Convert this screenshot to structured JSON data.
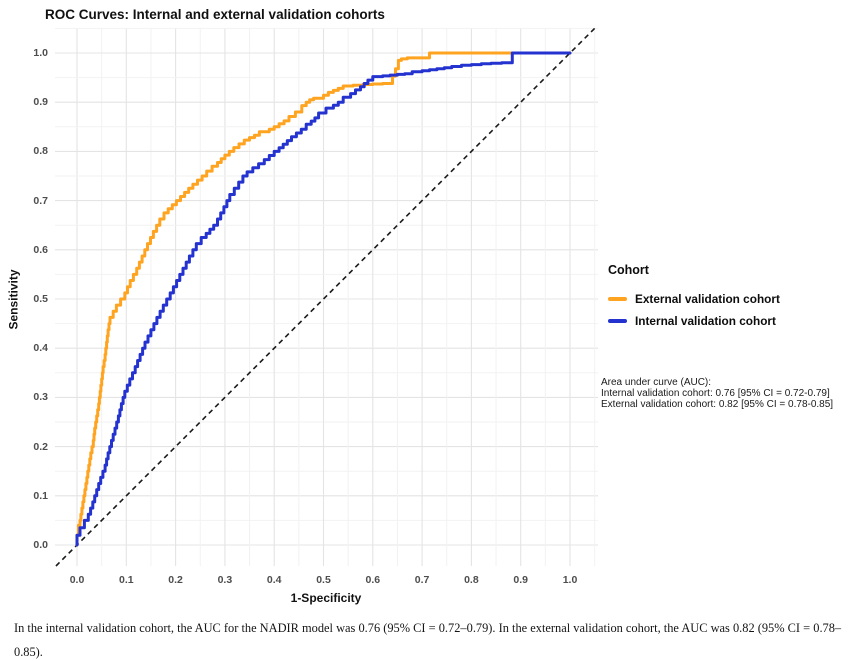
{
  "title": "ROC Curves: Internal and external validation cohorts",
  "axes": {
    "x_label": "1-Specificity",
    "y_label": "Sensitivity",
    "x_ticks": [
      "0.0",
      "0.1",
      "0.2",
      "0.3",
      "0.4",
      "0.5",
      "0.6",
      "0.7",
      "0.8",
      "0.9",
      "1.0"
    ],
    "y_ticks": [
      "0.0",
      "0.1",
      "0.2",
      "0.3",
      "0.4",
      "0.5",
      "0.6",
      "0.7",
      "0.8",
      "0.9",
      "1.0"
    ]
  },
  "legend": {
    "title": "Cohort",
    "items": [
      {
        "label": "External validation cohort",
        "color": "#FFA420"
      },
      {
        "label": "Internal validation cohort",
        "color": "#2433D0"
      }
    ]
  },
  "annotation": {
    "line1": "Area under curve (AUC):",
    "line2": "Internal validation cohort: 0.76 [95% CI = 0.72-0.79]",
    "line3": "External validation cohort: 0.82 [95% CI = 0.78-0.85]"
  },
  "caption": "In the internal validation cohort, the AUC for the NADIR model was 0.76 (95% CI = 0.72–0.79). In the external validation cohort, the AUC was 0.82 (95% CI = 0.78–0.85).",
  "chart_data": {
    "type": "line",
    "subtype": "roc-step-curves",
    "title": "ROC Curves: Internal and external validation cohorts",
    "xlabel": "1-Specificity",
    "ylabel": "Sensitivity",
    "xlim": [
      0,
      1
    ],
    "ylim": [
      0,
      1
    ],
    "grid": true,
    "legend_position": "right-outside",
    "colors": {
      "grid_major": "#e4e4e4",
      "grid_minor": "#f2f2f2",
      "reference": "#1a1a1a"
    },
    "reference_line": {
      "style": "dashed",
      "from": [
        0,
        0
      ],
      "to": [
        1,
        1
      ],
      "meaning": "chance diagonal"
    },
    "series": [
      {
        "name": "External validation cohort",
        "color": "#FFA420",
        "auc": 0.82,
        "auc_ci": "0.78-0.85",
        "points": [
          [
            0.0,
            0.0
          ],
          [
            0.003,
            0.02
          ],
          [
            0.006,
            0.04
          ],
          [
            0.008,
            0.05
          ],
          [
            0.012,
            0.075
          ],
          [
            0.016,
            0.1
          ],
          [
            0.02,
            0.125
          ],
          [
            0.024,
            0.15
          ],
          [
            0.028,
            0.175
          ],
          [
            0.033,
            0.2
          ],
          [
            0.036,
            0.225
          ],
          [
            0.04,
            0.25
          ],
          [
            0.044,
            0.275
          ],
          [
            0.047,
            0.3
          ],
          [
            0.05,
            0.325
          ],
          [
            0.053,
            0.35
          ],
          [
            0.057,
            0.375
          ],
          [
            0.06,
            0.4
          ],
          [
            0.063,
            0.425
          ],
          [
            0.067,
            0.45
          ],
          [
            0.08,
            0.475
          ],
          [
            0.097,
            0.5
          ],
          [
            0.108,
            0.525
          ],
          [
            0.121,
            0.55
          ],
          [
            0.132,
            0.575
          ],
          [
            0.143,
            0.6
          ],
          [
            0.155,
            0.625
          ],
          [
            0.168,
            0.65
          ],
          [
            0.185,
            0.675
          ],
          [
            0.21,
            0.7
          ],
          [
            0.235,
            0.725
          ],
          [
            0.263,
            0.75
          ],
          [
            0.285,
            0.77
          ],
          [
            0.3,
            0.785
          ],
          [
            0.318,
            0.8
          ],
          [
            0.35,
            0.823
          ],
          [
            0.37,
            0.833
          ],
          [
            0.39,
            0.84
          ],
          [
            0.41,
            0.85
          ],
          [
            0.43,
            0.862
          ],
          [
            0.456,
            0.88
          ],
          [
            0.465,
            0.893
          ],
          [
            0.472,
            0.9
          ],
          [
            0.48,
            0.905
          ],
          [
            0.5,
            0.908
          ],
          [
            0.52,
            0.92
          ],
          [
            0.54,
            0.928
          ],
          [
            0.56,
            0.933
          ],
          [
            0.6,
            0.936
          ],
          [
            0.64,
            0.938
          ],
          [
            0.652,
            0.968
          ],
          [
            0.658,
            0.985
          ],
          [
            0.67,
            0.988
          ],
          [
            0.69,
            0.99
          ],
          [
            0.715,
            0.99
          ],
          [
            0.722,
            1.0
          ],
          [
            1.0,
            1.0
          ]
        ]
      },
      {
        "name": "Internal validation cohort",
        "color": "#2433D0",
        "auc": 0.76,
        "auc_ci": "0.72-0.79",
        "points": [
          [
            0.0,
            0.0
          ],
          [
            0.006,
            0.02
          ],
          [
            0.015,
            0.035
          ],
          [
            0.023,
            0.05
          ],
          [
            0.032,
            0.075
          ],
          [
            0.04,
            0.1
          ],
          [
            0.048,
            0.125
          ],
          [
            0.057,
            0.15
          ],
          [
            0.063,
            0.175
          ],
          [
            0.07,
            0.2
          ],
          [
            0.077,
            0.225
          ],
          [
            0.084,
            0.25
          ],
          [
            0.09,
            0.275
          ],
          [
            0.097,
            0.3
          ],
          [
            0.107,
            0.325
          ],
          [
            0.118,
            0.35
          ],
          [
            0.128,
            0.375
          ],
          [
            0.138,
            0.4
          ],
          [
            0.15,
            0.425
          ],
          [
            0.162,
            0.45
          ],
          [
            0.175,
            0.475
          ],
          [
            0.189,
            0.5
          ],
          [
            0.202,
            0.525
          ],
          [
            0.215,
            0.55
          ],
          [
            0.228,
            0.575
          ],
          [
            0.242,
            0.6
          ],
          [
            0.262,
            0.625
          ],
          [
            0.285,
            0.65
          ],
          [
            0.298,
            0.675
          ],
          [
            0.31,
            0.7
          ],
          [
            0.328,
            0.725
          ],
          [
            0.345,
            0.75
          ],
          [
            0.38,
            0.775
          ],
          [
            0.41,
            0.8
          ],
          [
            0.435,
            0.822
          ],
          [
            0.465,
            0.845
          ],
          [
            0.475,
            0.855
          ],
          [
            0.49,
            0.868
          ],
          [
            0.505,
            0.878
          ],
          [
            0.52,
            0.888
          ],
          [
            0.54,
            0.9
          ],
          [
            0.555,
            0.91
          ],
          [
            0.575,
            0.925
          ],
          [
            0.59,
            0.938
          ],
          [
            0.6,
            0.945
          ],
          [
            0.62,
            0.952
          ],
          [
            0.65,
            0.955
          ],
          [
            0.68,
            0.958
          ],
          [
            0.7,
            0.962
          ],
          [
            0.73,
            0.966
          ],
          [
            0.76,
            0.97
          ],
          [
            0.8,
            0.975
          ],
          [
            0.84,
            0.978
          ],
          [
            0.883,
            0.98
          ],
          [
            0.886,
            1.0
          ],
          [
            1.0,
            1.0
          ]
        ]
      }
    ]
  }
}
